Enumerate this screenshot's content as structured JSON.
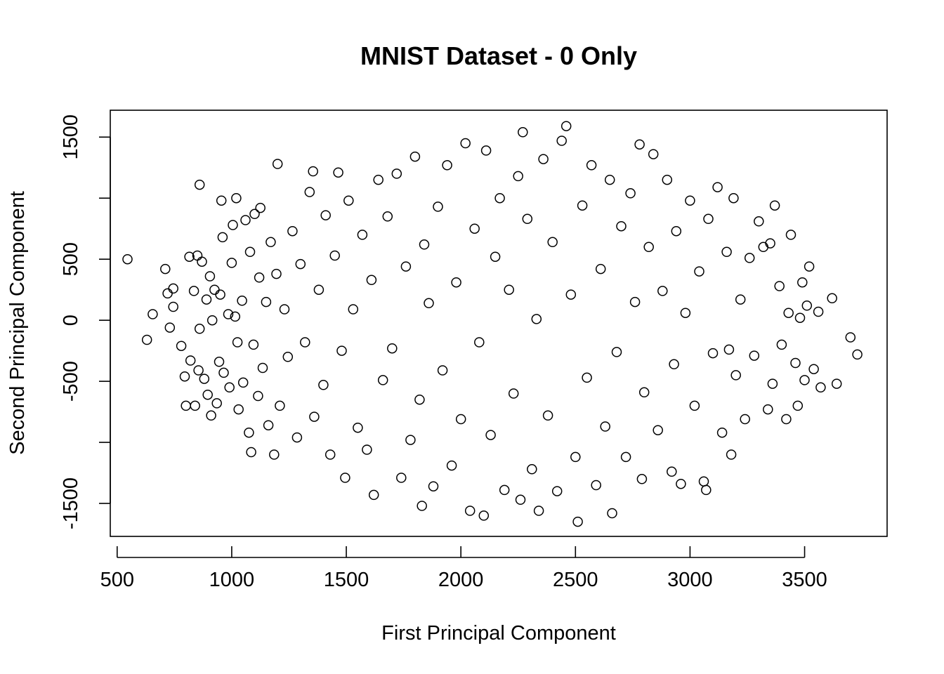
{
  "chart_data": {
    "type": "scatter",
    "title": "MNIST Dataset - 0 Only",
    "xlabel": "First Principal Component",
    "ylabel": "Second Principal Component",
    "xlim": [
      470,
      3860
    ],
    "ylim": [
      -1770,
      1720
    ],
    "x_ticks": [
      500,
      1000,
      1500,
      2000,
      2500,
      3000,
      3500
    ],
    "x_tick_labels": [
      "500",
      "1000",
      "1500",
      "2000",
      "2500",
      "3000",
      "3500"
    ],
    "y_ticks": [
      -1500,
      -1000,
      -500,
      0,
      500,
      1000,
      1500
    ],
    "y_tick_labels": [
      "-1500",
      "",
      "-500",
      "0",
      "500",
      "",
      "1500"
    ],
    "grid": false,
    "legend": "none",
    "marker": "open-circle",
    "color": "#000000",
    "points": [
      [
        545,
        500
      ],
      [
        630,
        -160
      ],
      [
        655,
        50
      ],
      [
        710,
        420
      ],
      [
        720,
        220
      ],
      [
        730,
        -60
      ],
      [
        745,
        260
      ],
      [
        745,
        110
      ],
      [
        780,
        -210
      ],
      [
        795,
        -460
      ],
      [
        800,
        -700
      ],
      [
        815,
        520
      ],
      [
        820,
        -330
      ],
      [
        835,
        240
      ],
      [
        840,
        -700
      ],
      [
        850,
        530
      ],
      [
        855,
        -410
      ],
      [
        860,
        1110
      ],
      [
        860,
        -70
      ],
      [
        870,
        480
      ],
      [
        880,
        -480
      ],
      [
        890,
        170
      ],
      [
        895,
        -610
      ],
      [
        905,
        360
      ],
      [
        910,
        -780
      ],
      [
        915,
        0
      ],
      [
        925,
        250
      ],
      [
        935,
        -680
      ],
      [
        945,
        -340
      ],
      [
        950,
        210
      ],
      [
        955,
        980
      ],
      [
        960,
        680
      ],
      [
        965,
        -430
      ],
      [
        985,
        50
      ],
      [
        990,
        -550
      ],
      [
        1000,
        470
      ],
      [
        1005,
        780
      ],
      [
        1015,
        30
      ],
      [
        1020,
        1000
      ],
      [
        1025,
        -180
      ],
      [
        1030,
        -730
      ],
      [
        1045,
        160
      ],
      [
        1050,
        -510
      ],
      [
        1060,
        820
      ],
      [
        1075,
        -920
      ],
      [
        1080,
        560
      ],
      [
        1085,
        -1080
      ],
      [
        1095,
        -200
      ],
      [
        1100,
        870
      ],
      [
        1115,
        -620
      ],
      [
        1120,
        350
      ],
      [
        1125,
        920
      ],
      [
        1135,
        -390
      ],
      [
        1150,
        150
      ],
      [
        1160,
        -860
      ],
      [
        1170,
        640
      ],
      [
        1185,
        -1100
      ],
      [
        1195,
        380
      ],
      [
        1200,
        1280
      ],
      [
        1210,
        -700
      ],
      [
        1230,
        90
      ],
      [
        1245,
        -300
      ],
      [
        1265,
        730
      ],
      [
        1285,
        -960
      ],
      [
        1300,
        460
      ],
      [
        1320,
        -180
      ],
      [
        1340,
        1050
      ],
      [
        1355,
        1220
      ],
      [
        1360,
        -790
      ],
      [
        1380,
        250
      ],
      [
        1400,
        -530
      ],
      [
        1410,
        860
      ],
      [
        1430,
        -1100
      ],
      [
        1450,
        530
      ],
      [
        1465,
        1210
      ],
      [
        1480,
        -250
      ],
      [
        1495,
        -1290
      ],
      [
        1510,
        980
      ],
      [
        1530,
        90
      ],
      [
        1550,
        -880
      ],
      [
        1570,
        700
      ],
      [
        1590,
        -1060
      ],
      [
        1610,
        330
      ],
      [
        1620,
        -1430
      ],
      [
        1640,
        1150
      ],
      [
        1660,
        -490
      ],
      [
        1680,
        850
      ],
      [
        1700,
        -230
      ],
      [
        1720,
        1200
      ],
      [
        1740,
        -1290
      ],
      [
        1760,
        440
      ],
      [
        1780,
        -980
      ],
      [
        1800,
        1340
      ],
      [
        1820,
        -650
      ],
      [
        1830,
        -1520
      ],
      [
        1840,
        620
      ],
      [
        1860,
        140
      ],
      [
        1880,
        -1360
      ],
      [
        1900,
        930
      ],
      [
        1920,
        -410
      ],
      [
        1940,
        1270
      ],
      [
        1960,
        -1190
      ],
      [
        1980,
        310
      ],
      [
        2000,
        -810
      ],
      [
        2020,
        1450
      ],
      [
        2040,
        -1560
      ],
      [
        2060,
        750
      ],
      [
        2080,
        -180
      ],
      [
        2100,
        -1600
      ],
      [
        2110,
        1390
      ],
      [
        2130,
        -940
      ],
      [
        2150,
        520
      ],
      [
        2170,
        1000
      ],
      [
        2190,
        -1390
      ],
      [
        2210,
        250
      ],
      [
        2230,
        -600
      ],
      [
        2250,
        1180
      ],
      [
        2260,
        -1470
      ],
      [
        2270,
        1540
      ],
      [
        2290,
        830
      ],
      [
        2310,
        -1220
      ],
      [
        2330,
        10
      ],
      [
        2340,
        -1560
      ],
      [
        2360,
        1320
      ],
      [
        2380,
        -780
      ],
      [
        2400,
        640
      ],
      [
        2420,
        -1400
      ],
      [
        2440,
        1470
      ],
      [
        2460,
        1590
      ],
      [
        2480,
        210
      ],
      [
        2500,
        -1120
      ],
      [
        2510,
        -1650
      ],
      [
        2530,
        940
      ],
      [
        2550,
        -470
      ],
      [
        2570,
        1270
      ],
      [
        2590,
        -1350
      ],
      [
        2610,
        420
      ],
      [
        2630,
        -870
      ],
      [
        2650,
        1150
      ],
      [
        2660,
        -1580
      ],
      [
        2680,
        -260
      ],
      [
        2700,
        770
      ],
      [
        2720,
        -1120
      ],
      [
        2740,
        1040
      ],
      [
        2760,
        150
      ],
      [
        2780,
        1440
      ],
      [
        2790,
        -1300
      ],
      [
        2800,
        -590
      ],
      [
        2820,
        600
      ],
      [
        2840,
        1360
      ],
      [
        2860,
        -900
      ],
      [
        2880,
        240
      ],
      [
        2900,
        1150
      ],
      [
        2920,
        -1240
      ],
      [
        2930,
        -360
      ],
      [
        2940,
        730
      ],
      [
        2960,
        -1340
      ],
      [
        2980,
        60
      ],
      [
        3000,
        980
      ],
      [
        3020,
        -700
      ],
      [
        3040,
        400
      ],
      [
        3060,
        -1320
      ],
      [
        3070,
        -1390
      ],
      [
        3080,
        830
      ],
      [
        3100,
        -270
      ],
      [
        3120,
        1090
      ],
      [
        3140,
        -920
      ],
      [
        3160,
        560
      ],
      [
        3170,
        -240
      ],
      [
        3180,
        -1100
      ],
      [
        3190,
        1000
      ],
      [
        3200,
        -450
      ],
      [
        3220,
        170
      ],
      [
        3240,
        -810
      ],
      [
        3260,
        510
      ],
      [
        3280,
        -290
      ],
      [
        3300,
        810
      ],
      [
        3320,
        600
      ],
      [
        3340,
        -730
      ],
      [
        3350,
        630
      ],
      [
        3360,
        -520
      ],
      [
        3370,
        940
      ],
      [
        3390,
        280
      ],
      [
        3400,
        -200
      ],
      [
        3420,
        -810
      ],
      [
        3430,
        60
      ],
      [
        3440,
        700
      ],
      [
        3460,
        -350
      ],
      [
        3470,
        -700
      ],
      [
        3480,
        20
      ],
      [
        3490,
        310
      ],
      [
        3500,
        -490
      ],
      [
        3510,
        120
      ],
      [
        3520,
        440
      ],
      [
        3540,
        -400
      ],
      [
        3560,
        70
      ],
      [
        3570,
        -550
      ],
      [
        3620,
        180
      ],
      [
        3640,
        -520
      ],
      [
        3700,
        -140
      ],
      [
        3730,
        -280
      ]
    ]
  }
}
